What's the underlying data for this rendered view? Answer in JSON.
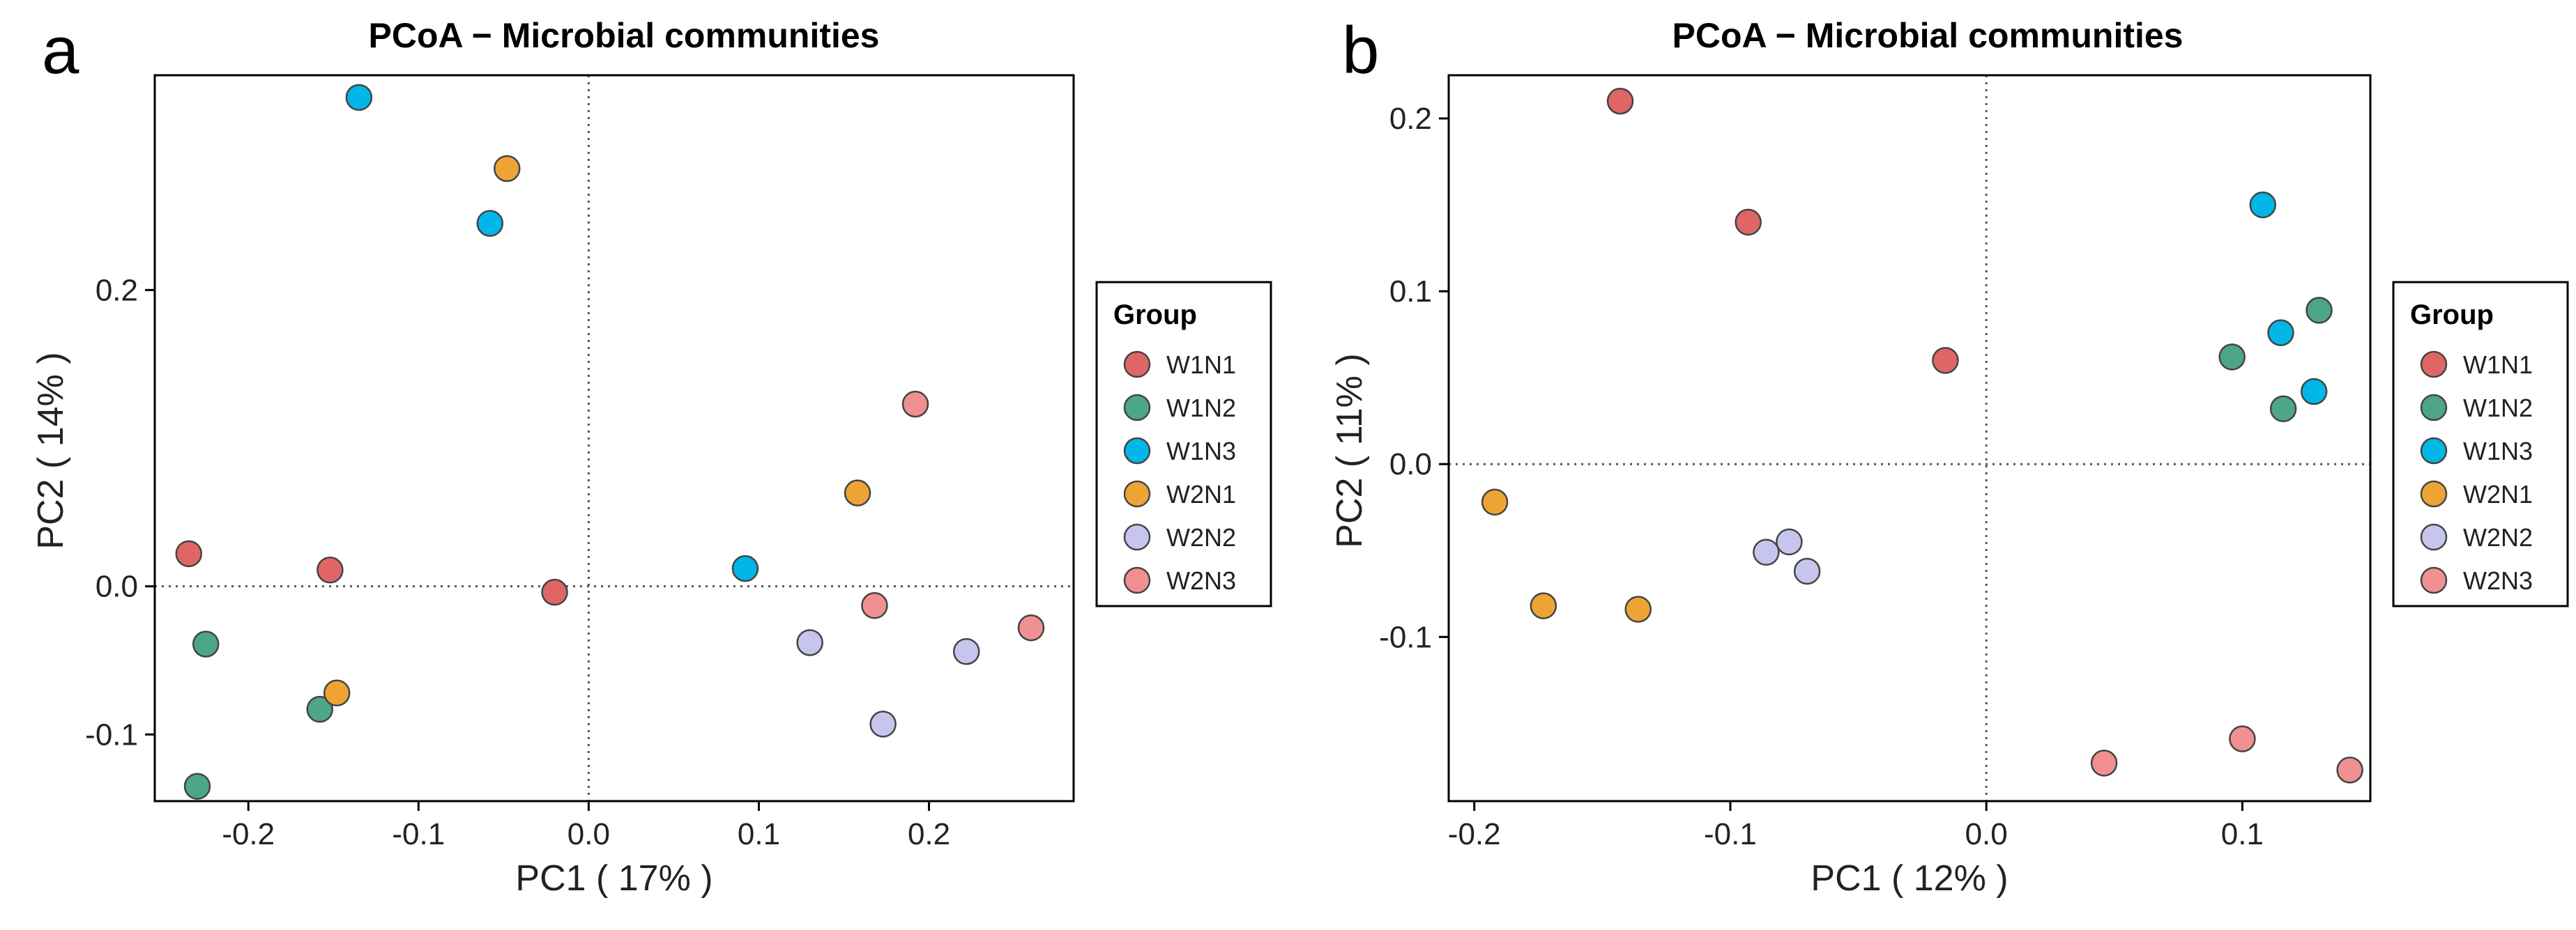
{
  "figure": {
    "panels": [
      "a",
      "b"
    ]
  },
  "chart_data": [
    {
      "type": "scatter",
      "panel_letter": "a",
      "title": "PCoA − Microbial communities",
      "xlabel": "PC1 ( 17% )",
      "ylabel": "PC2 ( 14% )",
      "xlim": [
        -0.255,
        0.285
      ],
      "ylim": [
        -0.145,
        0.345
      ],
      "xticks": [
        -0.2,
        -0.1,
        0.0,
        0.1,
        0.2
      ],
      "xtick_labels": [
        "-0.2",
        "-0.1",
        "0.0",
        "0.1",
        "0.2"
      ],
      "yticks": [
        -0.1,
        0.0,
        0.2
      ],
      "ytick_labels": [
        "-0.1",
        "0.0",
        "0.2"
      ],
      "reference_lines": {
        "x": 0,
        "y": 0,
        "style": "dotted"
      },
      "legend": {
        "title": "Group",
        "placement": "right"
      },
      "series": [
        {
          "name": "W1N1",
          "color": "#E06666",
          "points": [
            [
              -0.235,
              0.022
            ],
            [
              -0.152,
              0.011
            ],
            [
              -0.02,
              -0.004
            ]
          ]
        },
        {
          "name": "W1N2",
          "color": "#4DA58A",
          "points": [
            [
              -0.225,
              -0.039
            ],
            [
              -0.158,
              -0.083
            ],
            [
              -0.23,
              -0.135
            ]
          ]
        },
        {
          "name": "W1N3",
          "color": "#00B7E8",
          "points": [
            [
              -0.135,
              0.33
            ],
            [
              -0.058,
              0.245
            ],
            [
              0.092,
              0.012
            ]
          ]
        },
        {
          "name": "W2N1",
          "color": "#EEA435",
          "points": [
            [
              -0.048,
              0.282
            ],
            [
              -0.148,
              -0.072
            ],
            [
              0.158,
              0.063
            ]
          ]
        },
        {
          "name": "W2N2",
          "color": "#C7C5EE",
          "points": [
            [
              0.13,
              -0.038
            ],
            [
              0.222,
              -0.044
            ],
            [
              0.173,
              -0.093
            ]
          ]
        },
        {
          "name": "W2N3",
          "color": "#F09090",
          "points": [
            [
              0.192,
              0.123
            ],
            [
              0.168,
              -0.013
            ],
            [
              0.26,
              -0.028
            ]
          ]
        }
      ]
    },
    {
      "type": "scatter",
      "panel_letter": "b",
      "title": "PCoA − Microbial communities",
      "xlabel": "PC1 ( 12% )",
      "ylabel": "PC2 ( 11% )",
      "xlim": [
        -0.21,
        0.15
      ],
      "ylim": [
        -0.195,
        0.225
      ],
      "xticks": [
        -0.2,
        -0.1,
        0.0,
        0.1
      ],
      "xtick_labels": [
        "-0.2",
        "-0.1",
        "0.0",
        "0.1"
      ],
      "yticks": [
        -0.1,
        0.0,
        0.1,
        0.2
      ],
      "ytick_labels": [
        "-0.1",
        "0.0",
        "0.1",
        "0.2"
      ],
      "reference_lines": {
        "x": 0,
        "y": 0,
        "style": "dotted"
      },
      "legend": {
        "title": "Group",
        "placement": "right"
      },
      "series": [
        {
          "name": "W1N1",
          "color": "#E06666",
          "points": [
            [
              -0.143,
              0.21
            ],
            [
              -0.093,
              0.14
            ],
            [
              -0.016,
              0.06
            ]
          ]
        },
        {
          "name": "W1N2",
          "color": "#4DA58A",
          "points": [
            [
              0.13,
              0.089
            ],
            [
              0.096,
              0.062
            ],
            [
              0.116,
              0.032
            ]
          ]
        },
        {
          "name": "W1N3",
          "color": "#00B7E8",
          "points": [
            [
              0.108,
              0.15
            ],
            [
              0.115,
              0.076
            ],
            [
              0.128,
              0.042
            ]
          ]
        },
        {
          "name": "W2N1",
          "color": "#EEA435",
          "points": [
            [
              -0.192,
              -0.022
            ],
            [
              -0.173,
              -0.082
            ],
            [
              -0.136,
              -0.084
            ]
          ]
        },
        {
          "name": "W2N2",
          "color": "#C7C5EE",
          "points": [
            [
              -0.086,
              -0.051
            ],
            [
              -0.077,
              -0.045
            ],
            [
              -0.07,
              -0.062
            ]
          ]
        },
        {
          "name": "W2N3",
          "color": "#F09090",
          "points": [
            [
              0.046,
              -0.173
            ],
            [
              0.1,
              -0.159
            ],
            [
              0.142,
              -0.177
            ]
          ]
        }
      ]
    }
  ]
}
